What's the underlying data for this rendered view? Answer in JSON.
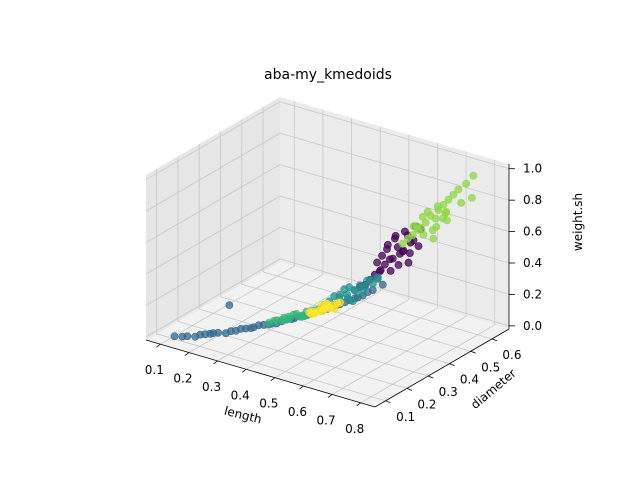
{
  "chart_data": {
    "type": "scatter3d",
    "title": "aba-my_kmedoids",
    "xlabel": "length",
    "ylabel": "diameter",
    "zlabel": "weight.sh",
    "xlim": [
      0.05,
      0.85
    ],
    "ylim": [
      0.05,
      0.68
    ],
    "zlim": [
      -0.02,
      1.03
    ],
    "xticks": [
      "0.1",
      "0.2",
      "0.3",
      "0.4",
      "0.5",
      "0.6",
      "0.7",
      "0.8"
    ],
    "yticks": [
      "0.1",
      "0.2",
      "0.3",
      "0.4",
      "0.5",
      "0.6"
    ],
    "zticks": [
      "0.0",
      "0.2",
      "0.4",
      "0.6",
      "0.8",
      "1.0"
    ],
    "grid": true,
    "pane_color": "#f2f2f2",
    "series": [
      {
        "color": "#440154",
        "points": [
          [
            0.6,
            0.47,
            0.46
          ],
          [
            0.62,
            0.49,
            0.5
          ],
          [
            0.64,
            0.5,
            0.56
          ],
          [
            0.58,
            0.46,
            0.42
          ],
          [
            0.61,
            0.48,
            0.53
          ],
          [
            0.63,
            0.5,
            0.6
          ],
          [
            0.57,
            0.45,
            0.38
          ],
          [
            0.59,
            0.47,
            0.45
          ],
          [
            0.65,
            0.51,
            0.66
          ],
          [
            0.56,
            0.44,
            0.36
          ],
          [
            0.6,
            0.48,
            0.58
          ],
          [
            0.62,
            0.47,
            0.43
          ],
          [
            0.55,
            0.43,
            0.33
          ],
          [
            0.66,
            0.52,
            0.64
          ],
          [
            0.61,
            0.49,
            0.48
          ],
          [
            0.58,
            0.44,
            0.4
          ],
          [
            0.63,
            0.48,
            0.52
          ],
          [
            0.59,
            0.46,
            0.55
          ],
          [
            0.64,
            0.49,
            0.44
          ],
          [
            0.57,
            0.46,
            0.47
          ],
          [
            0.54,
            0.42,
            0.3
          ],
          [
            0.62,
            0.5,
            0.62
          ],
          [
            0.6,
            0.46,
            0.39
          ],
          [
            0.65,
            0.5,
            0.58
          ],
          [
            0.56,
            0.45,
            0.43
          ],
          [
            0.61,
            0.47,
            0.61
          ],
          [
            0.63,
            0.51,
            0.48
          ],
          [
            0.58,
            0.47,
            0.51
          ],
          [
            0.53,
            0.41,
            0.29
          ],
          [
            0.66,
            0.51,
            0.54
          ]
        ]
      },
      {
        "color": "#31688e",
        "points": [
          [
            0.12,
            0.09,
            0.01
          ],
          [
            0.15,
            0.11,
            0.01
          ],
          [
            0.18,
            0.13,
            0.02
          ],
          [
            0.2,
            0.15,
            0.02
          ],
          [
            0.22,
            0.16,
            0.03
          ],
          [
            0.25,
            0.18,
            0.04
          ],
          [
            0.27,
            0.2,
            0.05
          ],
          [
            0.3,
            0.22,
            0.06
          ],
          [
            0.32,
            0.24,
            0.07
          ],
          [
            0.34,
            0.25,
            0.08
          ],
          [
            0.36,
            0.27,
            0.09
          ],
          [
            0.38,
            0.29,
            0.1
          ],
          [
            0.4,
            0.3,
            0.12
          ],
          [
            0.42,
            0.32,
            0.13
          ],
          [
            0.44,
            0.34,
            0.15
          ],
          [
            0.46,
            0.35,
            0.16
          ],
          [
            0.48,
            0.37,
            0.18
          ],
          [
            0.5,
            0.38,
            0.2
          ],
          [
            0.52,
            0.4,
            0.22
          ],
          [
            0.54,
            0.41,
            0.24
          ],
          [
            0.56,
            0.43,
            0.27
          ],
          [
            0.58,
            0.45,
            0.3
          ],
          [
            0.14,
            0.1,
            0.01
          ],
          [
            0.17,
            0.12,
            0.01
          ],
          [
            0.21,
            0.15,
            0.03
          ],
          [
            0.24,
            0.17,
            0.03
          ],
          [
            0.28,
            0.21,
            0.05
          ],
          [
            0.31,
            0.23,
            0.07
          ],
          [
            0.35,
            0.26,
            0.08
          ],
          [
            0.39,
            0.29,
            0.11
          ],
          [
            0.43,
            0.33,
            0.14
          ],
          [
            0.47,
            0.36,
            0.17
          ],
          [
            0.51,
            0.39,
            0.21
          ],
          [
            0.55,
            0.42,
            0.26
          ],
          [
            0.26,
            0.19,
            0.04
          ],
          [
            0.33,
            0.25,
            0.07
          ],
          [
            0.41,
            0.31,
            0.12
          ],
          [
            0.49,
            0.37,
            0.19
          ],
          [
            0.53,
            0.4,
            0.23
          ],
          [
            0.19,
            0.14,
            0.02
          ],
          [
            0.29,
            0.22,
            0.05
          ],
          [
            0.37,
            0.28,
            0.1
          ],
          [
            0.45,
            0.34,
            0.15
          ],
          [
            0.23,
            0.2,
            0.18
          ],
          [
            0.57,
            0.44,
            0.34
          ]
        ]
      },
      {
        "color": "#21918c",
        "points": [
          [
            0.46,
            0.36,
            0.2
          ],
          [
            0.48,
            0.38,
            0.22
          ],
          [
            0.5,
            0.39,
            0.24
          ],
          [
            0.52,
            0.4,
            0.27
          ],
          [
            0.54,
            0.42,
            0.29
          ],
          [
            0.56,
            0.43,
            0.31
          ],
          [
            0.49,
            0.37,
            0.25
          ],
          [
            0.51,
            0.41,
            0.26
          ],
          [
            0.53,
            0.41,
            0.3
          ],
          [
            0.47,
            0.37,
            0.23
          ],
          [
            0.55,
            0.43,
            0.33
          ],
          [
            0.5,
            0.4,
            0.28
          ],
          [
            0.52,
            0.39,
            0.21
          ],
          [
            0.54,
            0.43,
            0.32
          ],
          [
            0.48,
            0.36,
            0.19
          ],
          [
            0.57,
            0.44,
            0.35
          ],
          [
            0.45,
            0.35,
            0.18
          ],
          [
            0.53,
            0.42,
            0.25
          ],
          [
            0.51,
            0.38,
            0.23
          ],
          [
            0.49,
            0.39,
            0.27
          ]
        ]
      },
      {
        "color": "#35b779",
        "points": [
          [
            0.34,
            0.26,
            0.09
          ],
          [
            0.36,
            0.27,
            0.1
          ],
          [
            0.38,
            0.28,
            0.11
          ],
          [
            0.4,
            0.3,
            0.12
          ],
          [
            0.42,
            0.31,
            0.13
          ],
          [
            0.37,
            0.29,
            0.11
          ],
          [
            0.39,
            0.3,
            0.13
          ],
          [
            0.41,
            0.32,
            0.14
          ],
          [
            0.35,
            0.26,
            0.1
          ],
          [
            0.43,
            0.33,
            0.15
          ],
          [
            0.36,
            0.28,
            0.09
          ],
          [
            0.4,
            0.31,
            0.11
          ],
          [
            0.38,
            0.3,
            0.12
          ],
          [
            0.42,
            0.33,
            0.14
          ],
          [
            0.33,
            0.25,
            0.08
          ],
          [
            0.44,
            0.34,
            0.16
          ],
          [
            0.37,
            0.27,
            0.12
          ],
          [
            0.41,
            0.3,
            0.13
          ]
        ]
      },
      {
        "color": "#fde725",
        "points": [
          [
            0.42,
            0.32,
            0.14
          ],
          [
            0.44,
            0.33,
            0.15
          ],
          [
            0.45,
            0.35,
            0.16
          ],
          [
            0.47,
            0.36,
            0.18
          ],
          [
            0.46,
            0.34,
            0.17
          ],
          [
            0.43,
            0.33,
            0.13
          ],
          [
            0.48,
            0.37,
            0.19
          ],
          [
            0.45,
            0.34,
            0.15
          ],
          [
            0.44,
            0.35,
            0.17
          ],
          [
            0.46,
            0.36,
            0.16
          ],
          [
            0.49,
            0.37,
            0.2
          ],
          [
            0.43,
            0.32,
            0.15
          ],
          [
            0.47,
            0.35,
            0.17
          ],
          [
            0.45,
            0.36,
            0.18
          ],
          [
            0.42,
            0.33,
            0.12
          ],
          [
            0.48,
            0.36,
            0.16
          ],
          [
            0.46,
            0.35,
            0.19
          ],
          [
            0.44,
            0.34,
            0.14
          ]
        ]
      },
      {
        "color": "#8fd744",
        "points": [
          [
            0.63,
            0.5,
            0.58
          ],
          [
            0.65,
            0.52,
            0.63
          ],
          [
            0.67,
            0.53,
            0.68
          ],
          [
            0.68,
            0.54,
            0.72
          ],
          [
            0.7,
            0.55,
            0.76
          ],
          [
            0.66,
            0.52,
            0.65
          ],
          [
            0.69,
            0.55,
            0.7
          ],
          [
            0.71,
            0.56,
            0.79
          ],
          [
            0.64,
            0.51,
            0.6
          ],
          [
            0.72,
            0.57,
            0.82
          ],
          [
            0.67,
            0.54,
            0.74
          ],
          [
            0.7,
            0.54,
            0.66
          ],
          [
            0.73,
            0.58,
            0.85
          ],
          [
            0.66,
            0.53,
            0.71
          ],
          [
            0.69,
            0.56,
            0.77
          ],
          [
            0.74,
            0.59,
            0.88
          ],
          [
            0.68,
            0.55,
            0.62
          ],
          [
            0.65,
            0.5,
            0.67
          ],
          [
            0.71,
            0.57,
            0.73
          ],
          [
            0.76,
            0.6,
            0.92
          ],
          [
            0.75,
            0.59,
            0.8
          ],
          [
            0.62,
            0.49,
            0.55
          ],
          [
            0.77,
            0.62,
            0.96
          ],
          [
            0.7,
            0.57,
            0.69
          ],
          [
            0.67,
            0.52,
            0.61
          ],
          [
            0.72,
            0.56,
            0.75
          ],
          [
            0.73,
            0.55,
            0.71
          ],
          [
            0.64,
            0.53,
            0.64
          ],
          [
            0.78,
            0.6,
            0.84
          ],
          [
            0.69,
            0.54,
            0.58
          ]
        ]
      }
    ]
  }
}
